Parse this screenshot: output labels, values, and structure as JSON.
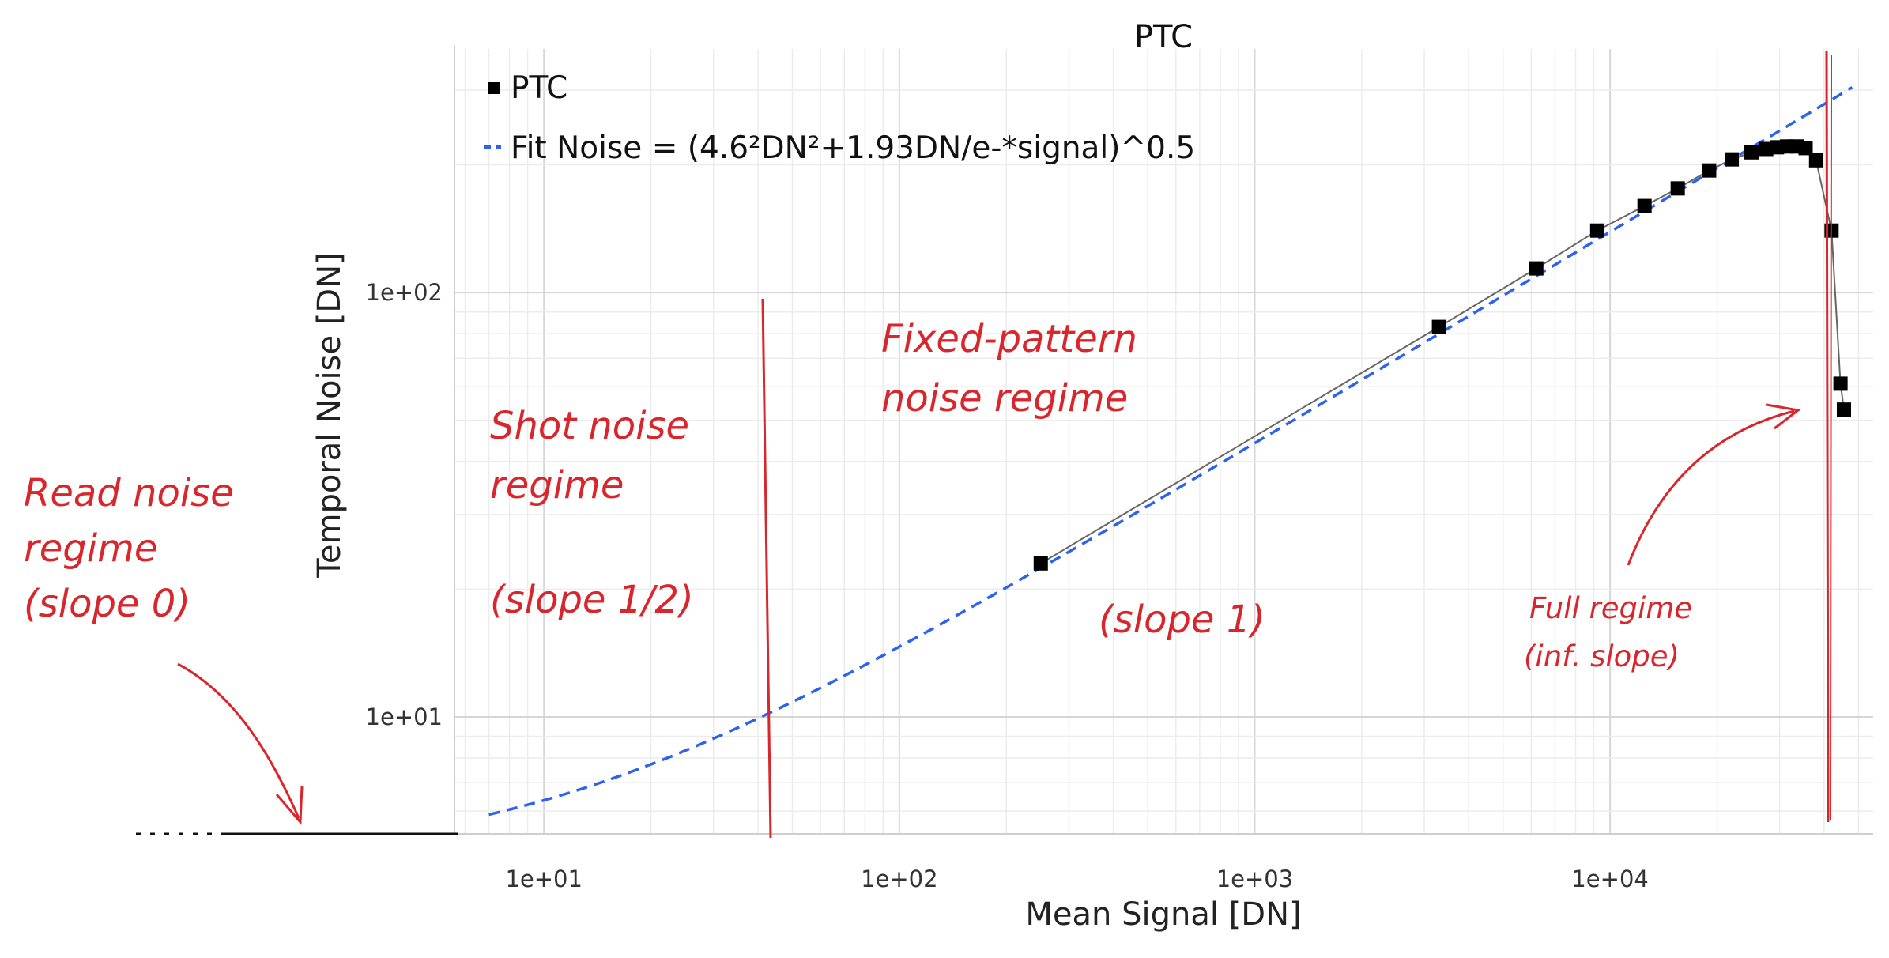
{
  "chart_data": {
    "type": "scatter",
    "title": "PTC",
    "xlabel": "Mean Signal [DN]",
    "ylabel": "Temporal Noise [DN]",
    "x_scale": "log",
    "y_scale": "log",
    "xlim": [
      5.6,
      55000
    ],
    "ylim": [
      5.3,
      375
    ],
    "grid": true,
    "legend_position": "top-left",
    "x_ticks": [
      {
        "value": 10,
        "label": "1e+01"
      },
      {
        "value": 100,
        "label": "1e+02"
      },
      {
        "value": 1000,
        "label": "1e+03"
      },
      {
        "value": 10000,
        "label": "1e+04"
      }
    ],
    "y_ticks": [
      {
        "value": 10,
        "label": "1e+01"
      },
      {
        "value": 100,
        "label": "1e+02"
      }
    ],
    "series": [
      {
        "name": "PTC",
        "kind": "markers",
        "color": "#000000",
        "points": [
          {
            "x": 250,
            "y": 23
          },
          {
            "x": 3300,
            "y": 83
          },
          {
            "x": 6200,
            "y": 114
          },
          {
            "x": 9200,
            "y": 140
          },
          {
            "x": 12500,
            "y": 160
          },
          {
            "x": 15500,
            "y": 176
          },
          {
            "x": 19000,
            "y": 194
          },
          {
            "x": 22000,
            "y": 206
          },
          {
            "x": 25000,
            "y": 214
          },
          {
            "x": 27500,
            "y": 218
          },
          {
            "x": 29500,
            "y": 220
          },
          {
            "x": 31500,
            "y": 221
          },
          {
            "x": 33500,
            "y": 221
          },
          {
            "x": 35500,
            "y": 219
          },
          {
            "x": 38000,
            "y": 205
          },
          {
            "x": 42000,
            "y": 140
          },
          {
            "x": 44500,
            "y": 61
          },
          {
            "x": 45500,
            "y": 53
          }
        ]
      },
      {
        "name": "Fit Noise = (4.6²DN²+1.93DN/e-*signal)^0.5",
        "kind": "dashed-line",
        "color": "#2b63ee",
        "read_noise_dn": 4.6,
        "gain_dn_per_e": 1.93,
        "x_range": [
          7,
          48000
        ]
      }
    ],
    "annotations": [
      {
        "id": "read",
        "lines": [
          "Read noise",
          "regime",
          "(slope 0)"
        ]
      },
      {
        "id": "shot",
        "lines": [
          "Shot noise",
          "regime",
          "",
          "(slope 1/2)"
        ]
      },
      {
        "id": "fpn",
        "lines": [
          "Fixed-pattern",
          "noise regime"
        ]
      },
      {
        "id": "slope1",
        "lines": [
          "(slope 1)"
        ]
      },
      {
        "id": "full",
        "lines": [
          "Full regime",
          "(inf. slope)"
        ]
      }
    ],
    "annotation_color": "#d8262c"
  }
}
